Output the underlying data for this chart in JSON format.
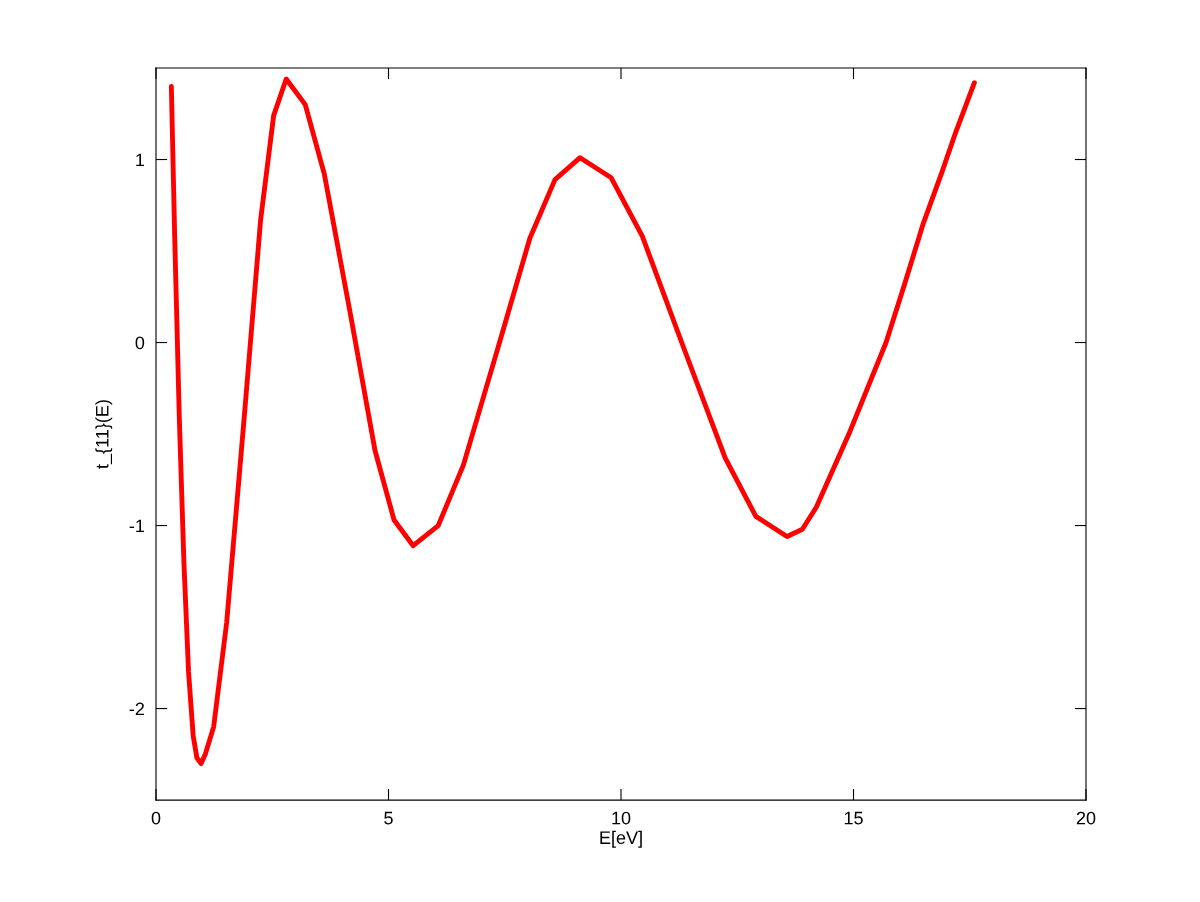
{
  "chart_data": {
    "type": "line",
    "xlabel": "E[eV]",
    "ylabel": "t_{11}(E)",
    "xlim": [
      0,
      20
    ],
    "ylim": [
      -2.5,
      1.5
    ],
    "xticks": [
      0,
      5,
      10,
      15,
      20
    ],
    "yticks": [
      -2,
      -1,
      0,
      1
    ],
    "grid": false,
    "marker": "none",
    "line_style": "solid",
    "series": [
      {
        "color": "#ff0000",
        "x": [
          0.33,
          0.4,
          0.5,
          0.6,
          0.7,
          0.8,
          0.88,
          0.97,
          1.06,
          1.24,
          1.52,
          1.89,
          2.25,
          2.53,
          2.8,
          3.21,
          3.62,
          4.17,
          4.71,
          5.12,
          5.53,
          6.07,
          6.61,
          7.33,
          8.04,
          8.58,
          9.12,
          9.79,
          10.46,
          11.35,
          12.24,
          12.9,
          13.57,
          13.9,
          14.2,
          14.9,
          15.7,
          16.1,
          16.5,
          16.9,
          17.2,
          17.6
        ],
        "values": [
          1.4,
          0.6,
          -0.4,
          -1.2,
          -1.8,
          -2.15,
          -2.27,
          -2.3,
          -2.25,
          -2.1,
          -1.53,
          -0.43,
          0.67,
          1.24,
          1.44,
          1.3,
          0.92,
          0.17,
          -0.59,
          -0.97,
          -1.11,
          -1.0,
          -0.67,
          -0.05,
          0.57,
          0.89,
          1.01,
          0.9,
          0.58,
          -0.03,
          -0.63,
          -0.95,
          -1.06,
          -1.02,
          -0.9,
          -0.5,
          0,
          0.32,
          0.65,
          0.93,
          1.15,
          1.42
        ]
      }
    ]
  }
}
